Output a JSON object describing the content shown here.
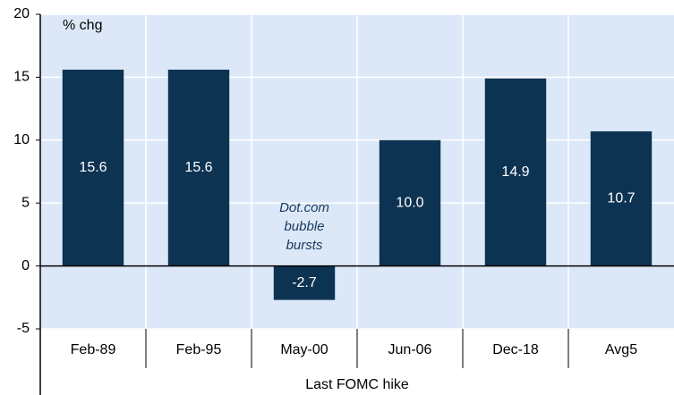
{
  "chart_data": {
    "type": "bar",
    "y_axis_label": "% chg",
    "x_axis_label": "Last FOMC hike",
    "categories": [
      "Feb-89",
      "Feb-95",
      "May-00",
      "Jun-06",
      "Dec-18",
      "Avg5"
    ],
    "values": [
      15.6,
      15.6,
      -2.7,
      10.0,
      14.9,
      10.7
    ],
    "value_labels": [
      "15.6",
      "15.6",
      "-2.7",
      "10.0",
      "14.9",
      "10.7"
    ],
    "color": "#0d3352",
    "annotations": [
      {
        "category": 2,
        "lines": [
          "Dot.com",
          "bubble",
          "bursts"
        ]
      }
    ],
    "ylim": [
      -5,
      20
    ],
    "yticks": [
      -5,
      0,
      5,
      10,
      15,
      20
    ],
    "grid": true
  }
}
